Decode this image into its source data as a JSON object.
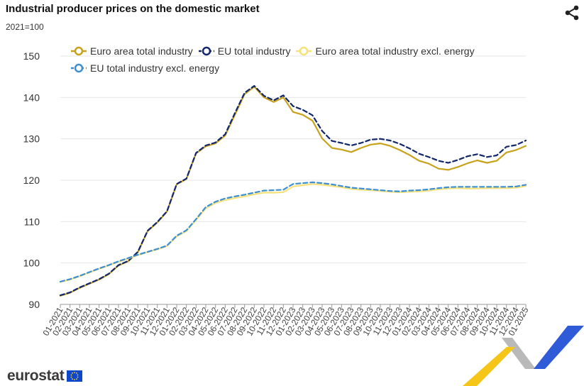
{
  "header": {
    "title": "Industrial producer prices on the domestic market",
    "subtitle": "2021=100",
    "share_icon": "share-icon"
  },
  "branding": {
    "logo_text": "eurostat",
    "flag_icon": "eu-flag-icon",
    "ribbon_colors": [
      "#2f5bd8",
      "#f5c518",
      "#b0b0b0"
    ]
  },
  "chart_data": {
    "type": "line",
    "title": "Industrial producer prices on the domestic market",
    "subtitle": "2021=100",
    "xlabel": "",
    "ylabel": "",
    "ylim": [
      90,
      150
    ],
    "yticks": [
      90,
      100,
      110,
      120,
      130,
      140,
      150
    ],
    "grid": true,
    "legend_position": "top",
    "categories": [
      "01-2021",
      "02-2021",
      "03-2021",
      "04-2021",
      "05-2021",
      "06-2021",
      "07-2021",
      "08-2021",
      "09-2021",
      "10-2021",
      "11-2021",
      "12-2021",
      "01-2022",
      "02-2022",
      "03-2022",
      "04-2022",
      "05-2022",
      "06-2022",
      "07-2022",
      "08-2022",
      "09-2022",
      "10-2022",
      "11-2022",
      "12-2022",
      "01-2023",
      "02-2023",
      "03-2023",
      "04-2023",
      "05-2023",
      "06-2023",
      "07-2023",
      "08-2023",
      "09-2023",
      "10-2023",
      "11-2023",
      "12-2023",
      "01-2024",
      "02-2024",
      "03-2024",
      "04-2024",
      "05-2024",
      "06-2024",
      "07-2024",
      "08-2024",
      "09-2024",
      "10-2024",
      "11-2024",
      "12-2024",
      "01-2025"
    ],
    "series": [
      {
        "name": "Euro area total industry",
        "color": "#c7a21a",
        "dash": false,
        "values": [
          92.1,
          92.8,
          94.0,
          95.0,
          96.0,
          97.3,
          99.4,
          100.4,
          102.6,
          107.7,
          109.8,
          112.4,
          119.0,
          120.3,
          126.5,
          128.2,
          128.9,
          130.8,
          135.8,
          140.8,
          142.6,
          140.0,
          138.9,
          140.0,
          136.5,
          135.8,
          134.4,
          130.1,
          127.8,
          127.4,
          126.8,
          127.8,
          128.6,
          128.9,
          128.3,
          127.3,
          126.1,
          124.7,
          124.0,
          122.8,
          122.5,
          123.2,
          124.1,
          124.8,
          124.2,
          124.7,
          126.7,
          127.3,
          128.3
        ]
      },
      {
        "name": "EU total industry",
        "color": "#13276b",
        "dash": true,
        "values": [
          92.2,
          92.9,
          94.1,
          95.1,
          96.1,
          97.4,
          99.5,
          100.5,
          102.7,
          107.8,
          109.9,
          112.5,
          119.1,
          120.4,
          126.6,
          128.4,
          129.1,
          131.1,
          136.2,
          141.1,
          142.8,
          140.4,
          139.3,
          140.5,
          137.9,
          137.0,
          135.7,
          131.9,
          129.5,
          129.0,
          128.4,
          129.0,
          129.8,
          130.0,
          129.6,
          128.8,
          127.7,
          126.4,
          125.6,
          124.7,
          124.2,
          124.9,
          125.8,
          126.3,
          125.6,
          126.0,
          128.1,
          128.5,
          129.6
        ]
      },
      {
        "name": "Euro area total industry excl. energy",
        "color": "#f7e17a",
        "dash": false,
        "values": [
          95.4,
          96.0,
          96.8,
          97.7,
          98.6,
          99.4,
          100.3,
          101.1,
          101.9,
          102.6,
          103.3,
          104.1,
          106.4,
          107.7,
          110.4,
          113.2,
          114.5,
          115.2,
          115.7,
          116.1,
          116.6,
          117.0,
          117.0,
          117.1,
          118.5,
          118.8,
          119.1,
          118.9,
          118.6,
          118.3,
          117.9,
          117.7,
          117.6,
          117.4,
          117.2,
          117.1,
          117.2,
          117.3,
          117.5,
          117.8,
          118.0,
          118.1,
          118.0,
          118.0,
          118.1,
          118.1,
          118.1,
          118.2,
          118.6
        ]
      },
      {
        "name": "EU total industry excl. energy",
        "color": "#3d8fd1",
        "dash": true,
        "values": [
          95.5,
          96.1,
          96.9,
          97.8,
          98.7,
          99.5,
          100.4,
          101.2,
          102.0,
          102.7,
          103.4,
          104.2,
          106.6,
          107.9,
          110.6,
          113.5,
          114.8,
          115.6,
          116.1,
          116.5,
          117.0,
          117.5,
          117.6,
          117.7,
          119.1,
          119.3,
          119.5,
          119.3,
          119.0,
          118.6,
          118.2,
          118.0,
          117.8,
          117.6,
          117.4,
          117.3,
          117.5,
          117.6,
          117.8,
          118.1,
          118.3,
          118.4,
          118.4,
          118.4,
          118.4,
          118.4,
          118.4,
          118.5,
          118.9
        ]
      }
    ]
  }
}
